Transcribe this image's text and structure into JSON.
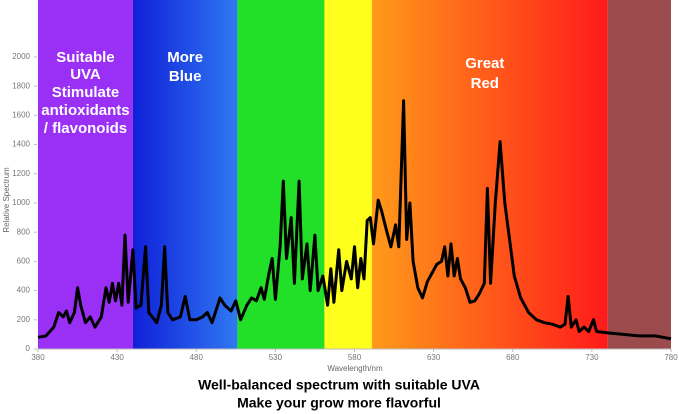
{
  "chart_data": {
    "type": "line",
    "x_label": "Wavelength/nm",
    "y_label": "Relative Spectrum",
    "captions": [
      "Well-balanced spectrum with suitable UVA",
      "Make your grow more flavorful"
    ],
    "xlim": [
      380,
      780
    ],
    "xticks": [
      380,
      430,
      480,
      530,
      580,
      630,
      680,
      730,
      780
    ],
    "ylim": [
      0,
      2390
    ],
    "yticks": [
      0,
      200,
      400,
      600,
      800,
      1000,
      1200,
      1400,
      1600,
      1800,
      2000
    ],
    "regions": [
      {
        "from": 380,
        "to": 440,
        "colors": [
          "#9a2ff5",
          "#9a2ff5"
        ],
        "label": [
          "Suitable",
          "UVA",
          "Stimulate",
          "antioxidants",
          "/ flavonoids"
        ]
      },
      {
        "from": 440,
        "to": 506,
        "colors": [
          "#1020d8",
          "#2f78f2"
        ],
        "label": [
          "More",
          "Blue"
        ]
      },
      {
        "from": 506,
        "to": 561,
        "colors": [
          "#22e028",
          "#22e028"
        ]
      },
      {
        "from": 561,
        "to": 591,
        "colors": [
          "#ffff1e",
          "#ffff1e"
        ]
      },
      {
        "from": 591,
        "to": 740,
        "colors": [
          "#ff9a1a",
          "#ff1a1a"
        ],
        "label": [
          "Great",
          "Red"
        ]
      },
      {
        "from": 740,
        "to": 780,
        "colors": [
          "#9b4b4b",
          "#9b4b4b"
        ]
      }
    ],
    "x": [
      380,
      385,
      390,
      393,
      396,
      398,
      400,
      403,
      405,
      407,
      410,
      413,
      416,
      420,
      423,
      425,
      427,
      429,
      431,
      433,
      435,
      437,
      440,
      442,
      445,
      448,
      450,
      455,
      458,
      460,
      462,
      465,
      470,
      473,
      476,
      480,
      484,
      487,
      490,
      495,
      498,
      502,
      505,
      508,
      512,
      515,
      518,
      521,
      523,
      526,
      528,
      530,
      533,
      535,
      537,
      540,
      542,
      545,
      547,
      550,
      552,
      555,
      557,
      560,
      563,
      565,
      567,
      570,
      572,
      575,
      578,
      580,
      582,
      584,
      586,
      588,
      590,
      592,
      595,
      597,
      600,
      603,
      606,
      608,
      611,
      613,
      615,
      617,
      620,
      623,
      626,
      629,
      632,
      635,
      637,
      639,
      641,
      643,
      645,
      647,
      650,
      653,
      656,
      659,
      662,
      664,
      666,
      669,
      672,
      675,
      678,
      681,
      685,
      690,
      695,
      700,
      705,
      710,
      713,
      715,
      717,
      720,
      722,
      725,
      728,
      731,
      733,
      740,
      750,
      760,
      770,
      780
    ],
    "series": [
      {
        "color": "#000000",
        "values": [
          80,
          90,
          150,
          250,
          220,
          260,
          180,
          250,
          420,
          300,
          180,
          220,
          150,
          220,
          420,
          320,
          450,
          330,
          450,
          300,
          780,
          320,
          680,
          280,
          300,
          700,
          250,
          180,
          300,
          700,
          250,
          200,
          220,
          360,
          200,
          200,
          220,
          250,
          180,
          350,
          300,
          260,
          330,
          200,
          300,
          350,
          330,
          420,
          340,
          520,
          620,
          340,
          700,
          1150,
          620,
          900,
          450,
          1150,
          480,
          720,
          400,
          780,
          400,
          500,
          300,
          550,
          320,
          680,
          400,
          600,
          480,
          700,
          420,
          620,
          480,
          880,
          900,
          720,
          1020,
          950,
          820,
          700,
          850,
          700,
          1700,
          750,
          1000,
          600,
          420,
          350,
          460,
          520,
          580,
          600,
          700,
          500,
          720,
          500,
          620,
          480,
          420,
          320,
          330,
          380,
          450,
          1100,
          450,
          1000,
          1420,
          1000,
          750,
          500,
          350,
          250,
          200,
          180,
          170,
          150,
          170,
          360,
          150,
          200,
          120,
          150,
          120,
          200,
          120,
          110,
          100,
          90,
          90,
          70
        ]
      }
    ]
  }
}
